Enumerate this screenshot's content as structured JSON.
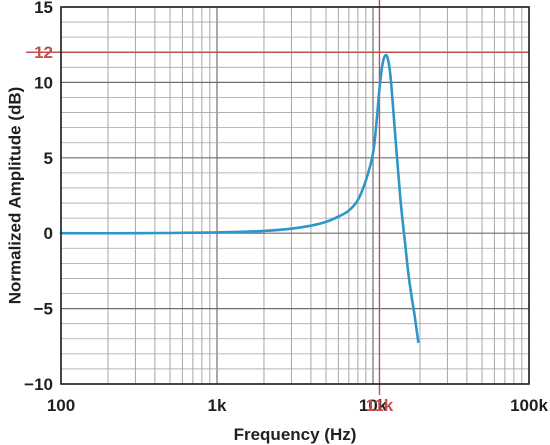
{
  "chart_data": {
    "type": "line",
    "xlabel": "Frequency (Hz)",
    "ylabel": "Normalized Amplitude (dB)",
    "x_scale": "log",
    "xlim": [
      100,
      100000
    ],
    "ylim": [
      -10,
      15
    ],
    "grid": true,
    "x_ticks": [
      {
        "value": 100,
        "label": "100"
      },
      {
        "value": 1000,
        "label": "1k"
      },
      {
        "value": 10000,
        "label": "10k"
      },
      {
        "value": 100000,
        "label": "100k"
      }
    ],
    "y_ticks": [
      {
        "value": 15,
        "label": "15"
      },
      {
        "value": 10,
        "label": "10"
      },
      {
        "value": 5,
        "label": "5"
      },
      {
        "value": 0,
        "label": "0"
      },
      {
        "value": -5,
        "label": "−5"
      },
      {
        "value": -10,
        "label": "−10"
      }
    ],
    "markers": {
      "x": {
        "value": 11000,
        "label": "11k"
      },
      "y": {
        "value": 12,
        "label": "12"
      }
    },
    "colors": {
      "curve": "#2e96c8",
      "marker": "#c0504d",
      "grid": "#a6a6a6",
      "frame": "#231f20",
      "text": "#231f20"
    },
    "series": [
      {
        "points": [
          [
            100,
            0
          ],
          [
            300,
            0
          ],
          [
            1000,
            0.05
          ],
          [
            2000,
            0.15
          ],
          [
            3000,
            0.3
          ],
          [
            4000,
            0.5
          ],
          [
            5000,
            0.75
          ],
          [
            6000,
            1.1
          ],
          [
            7000,
            1.5
          ],
          [
            8000,
            2.2
          ],
          [
            9000,
            3.5
          ],
          [
            10000,
            5.3
          ],
          [
            10500,
            7.2
          ],
          [
            11000,
            9.6
          ],
          [
            11500,
            11.2
          ],
          [
            12000,
            11.8
          ],
          [
            12500,
            11.5
          ],
          [
            13000,
            10.2
          ],
          [
            14000,
            6.0
          ],
          [
            15000,
            2.2
          ],
          [
            16000,
            -0.5
          ],
          [
            17000,
            -3.0
          ],
          [
            18500,
            -5.5
          ],
          [
            19500,
            -7.2
          ]
        ]
      }
    ]
  }
}
